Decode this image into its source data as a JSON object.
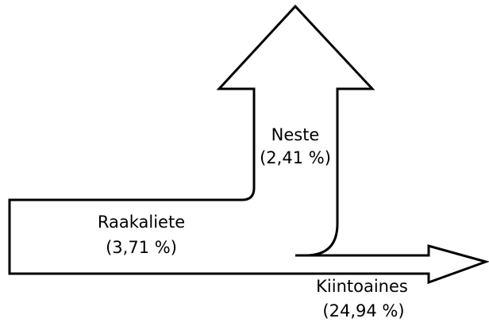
{
  "flows": [
    {
      "label": "Raakaliete",
      "value": "(3,71 %)"
    },
    {
      "label": "Neste",
      "value": "(2,41 %)"
    },
    {
      "label": "Kiintoaines",
      "value": "(24,94 %)"
    }
  ]
}
